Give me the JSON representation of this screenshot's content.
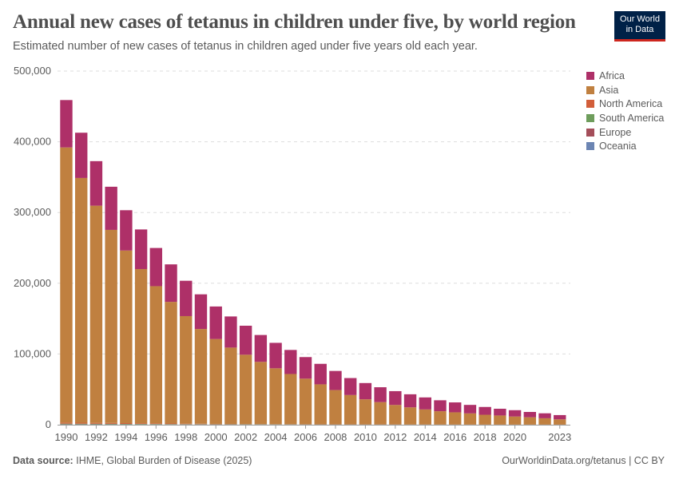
{
  "header": {
    "title": "Annual new cases of tetanus in children under five, by world region",
    "subtitle": "Estimated number of new cases of tetanus in children aged under five years old each year.",
    "logo": "Our World in Data"
  },
  "footer": {
    "source_label": "Data source:",
    "source": "IHME, Global Burden of Disease (2025)",
    "link": "OurWorldinData.org/tetanus | CC BY"
  },
  "chart_data": {
    "type": "bar",
    "stacked": true,
    "grid": true,
    "legend_placement": "right",
    "ylim": [
      0,
      500000
    ],
    "yticks": [
      "0",
      "100,000",
      "200,000",
      "300,000",
      "400,000",
      "500,000"
    ],
    "ytick_values": [
      0,
      100000,
      200000,
      300000,
      400000,
      500000
    ],
    "xtick_labels": [
      "1990",
      "1992",
      "1994",
      "1996",
      "1998",
      "2000",
      "2002",
      "2004",
      "2006",
      "2008",
      "2010",
      "2012",
      "2014",
      "2016",
      "2018",
      "2020",
      "2023"
    ],
    "categories": [
      1990,
      1991,
      1992,
      1993,
      1994,
      1995,
      1996,
      1997,
      1998,
      1999,
      2000,
      2001,
      2002,
      2003,
      2004,
      2005,
      2006,
      2007,
      2008,
      2009,
      2010,
      2011,
      2012,
      2013,
      2014,
      2015,
      2016,
      2017,
      2018,
      2019,
      2020,
      2021,
      2022,
      2023
    ],
    "series": [
      {
        "name": "Oceania",
        "color": "#6c85b3",
        "values": [
          300,
          300,
          280,
          260,
          240,
          220,
          200,
          190,
          180,
          170,
          160,
          150,
          140,
          130,
          120,
          110,
          100,
          95,
          90,
          85,
          80,
          75,
          70,
          65,
          60,
          55,
          50,
          45,
          40,
          40,
          35,
          35,
          30,
          30
        ]
      },
      {
        "name": "Europe",
        "color": "#a44e5a",
        "values": [
          300,
          280,
          260,
          240,
          220,
          200,
          180,
          160,
          140,
          120,
          100,
          90,
          80,
          70,
          60,
          55,
          50,
          45,
          40,
          35,
          30,
          28,
          26,
          24,
          22,
          20,
          18,
          16,
          14,
          12,
          11,
          10,
          9,
          8
        ]
      },
      {
        "name": "South America",
        "color": "#6e9d5c",
        "values": [
          900,
          850,
          800,
          750,
          700,
          650,
          600,
          550,
          500,
          450,
          400,
          370,
          340,
          310,
          280,
          260,
          240,
          220,
          200,
          180,
          160,
          150,
          140,
          130,
          120,
          110,
          100,
          90,
          80,
          75,
          70,
          65,
          60,
          55
        ]
      },
      {
        "name": "North America",
        "color": "#d25e3a",
        "values": [
          1500,
          1400,
          1300,
          1200,
          1100,
          1000,
          900,
          800,
          700,
          600,
          500,
          450,
          400,
          350,
          300,
          270,
          240,
          210,
          180,
          160,
          140,
          130,
          120,
          110,
          100,
          90,
          80,
          70,
          60,
          55,
          50,
          45,
          40,
          35
        ]
      },
      {
        "name": "Asia",
        "color": "#c08040",
        "values": [
          389000,
          346000,
          307000,
          273000,
          244000,
          218000,
          194000,
          172000,
          152000,
          134000,
          120000,
          108000,
          98000,
          88000,
          79000,
          71000,
          64500,
          56500,
          48500,
          41500,
          35500,
          31600,
          27600,
          24200,
          21300,
          18800,
          17300,
          15800,
          13900,
          12900,
          11400,
          10400,
          9000,
          7500
        ]
      },
      {
        "name": "Africa",
        "color": "#ae3068",
        "values": [
          67000,
          64000,
          63000,
          61000,
          57000,
          56000,
          54000,
          53000,
          50000,
          49000,
          46000,
          44000,
          41000,
          38000,
          36000,
          34000,
          30500,
          29000,
          27000,
          24000,
          23000,
          21000,
          19500,
          18500,
          17000,
          15500,
          14000,
          12000,
          11000,
          9500,
          9000,
          7500,
          7000,
          6000
        ]
      }
    ],
    "legend_order": [
      "Africa",
      "Asia",
      "North America",
      "South America",
      "Europe",
      "Oceania"
    ]
  }
}
